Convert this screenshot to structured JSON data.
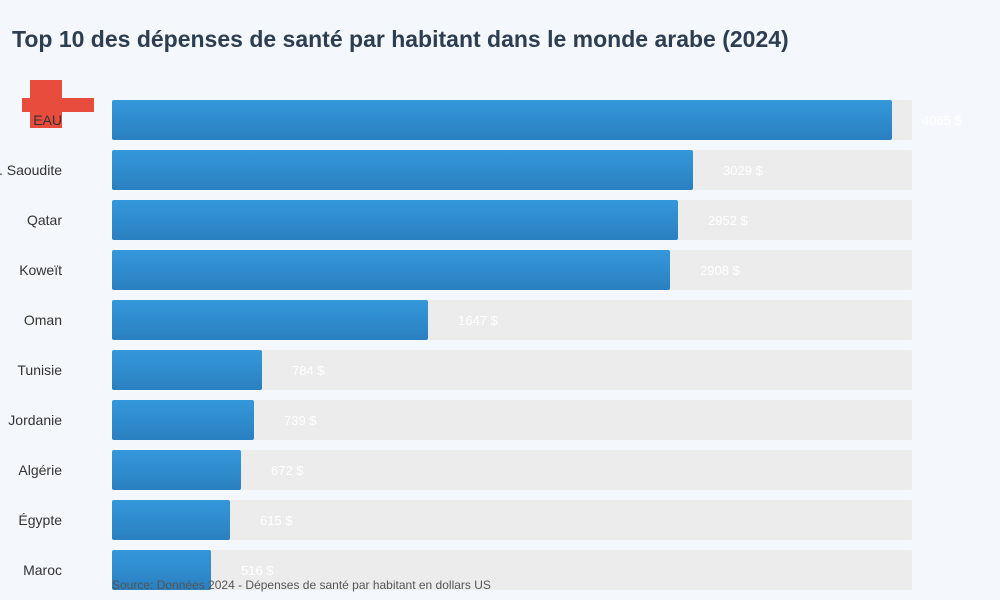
{
  "title": "Top 10 des dépenses de santé par habitant dans le monde arabe (2024)",
  "source": "Source: Données 2024 - Dépenses de santé par habitant en dollars US",
  "colors": {
    "bar": "#2f8fd6",
    "bar_dark": "#2a80c0",
    "track": "#ececec",
    "value_text": "#ffffff",
    "accent_cross": "#e74c3c"
  },
  "chart_data": {
    "type": "bar",
    "orientation": "horizontal",
    "title": "Top 10 des dépenses de santé par habitant dans le monde arabe (2024)",
    "categories": [
      "EAU",
      "A. Saoudite",
      "Qatar",
      "Koweït",
      "Oman",
      "Tunisie",
      "Jordanie",
      "Algérie",
      "Égypte",
      "Maroc"
    ],
    "values": [
      4065,
      3029,
      2952,
      2908,
      1647,
      784,
      739,
      672,
      615,
      516
    ],
    "value_labels": [
      "4065 $",
      "3029 $",
      "2952 $",
      "2908 $",
      "1647 $",
      "784 $",
      "739 $",
      "672 $",
      "615 $",
      "516 $"
    ],
    "xlim": [
      0,
      4065
    ],
    "grid": false,
    "legend": "none"
  }
}
